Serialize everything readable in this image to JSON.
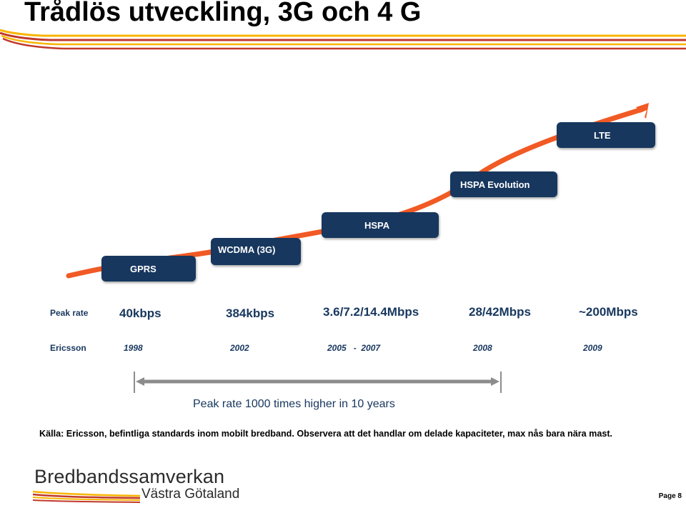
{
  "slide": {
    "title": "Trådlös utveckling, 3G och 4 G",
    "source_note": "Källa: Ericsson, befintliga standards inom mobilt bredband. Observera att det handlar om delade kapaciteter, max nås bara nära mast.",
    "page_label": "Page 8"
  },
  "diagram": {
    "generations": [
      {
        "label": "GPRS"
      },
      {
        "label": "WCDMA (3G)"
      },
      {
        "label": "HSPA"
      },
      {
        "label": "HSPA Evolution"
      },
      {
        "label": "LTE"
      }
    ],
    "peak_rate_label": "Peak rate",
    "peak_rates": [
      "40kbps",
      "384kbps",
      "3.6/7.2/14.4Mbps",
      "28/42Mbps",
      "~200Mbps"
    ],
    "vendor_label": "Ericsson",
    "years": [
      "1998",
      "2002",
      "2005   -  2007",
      "2008",
      "2009"
    ],
    "timeline_caption": "Peak rate 1000 times higher in 10 years"
  },
  "logo": {
    "main": "Bredbandssamverkan",
    "sub": "Västra Götaland"
  },
  "colors": {
    "accent_orange": "#f15a24",
    "box_navy": "#17375e",
    "stripe_red": "#c0392b",
    "stripe_yellow": "#f7b500"
  }
}
